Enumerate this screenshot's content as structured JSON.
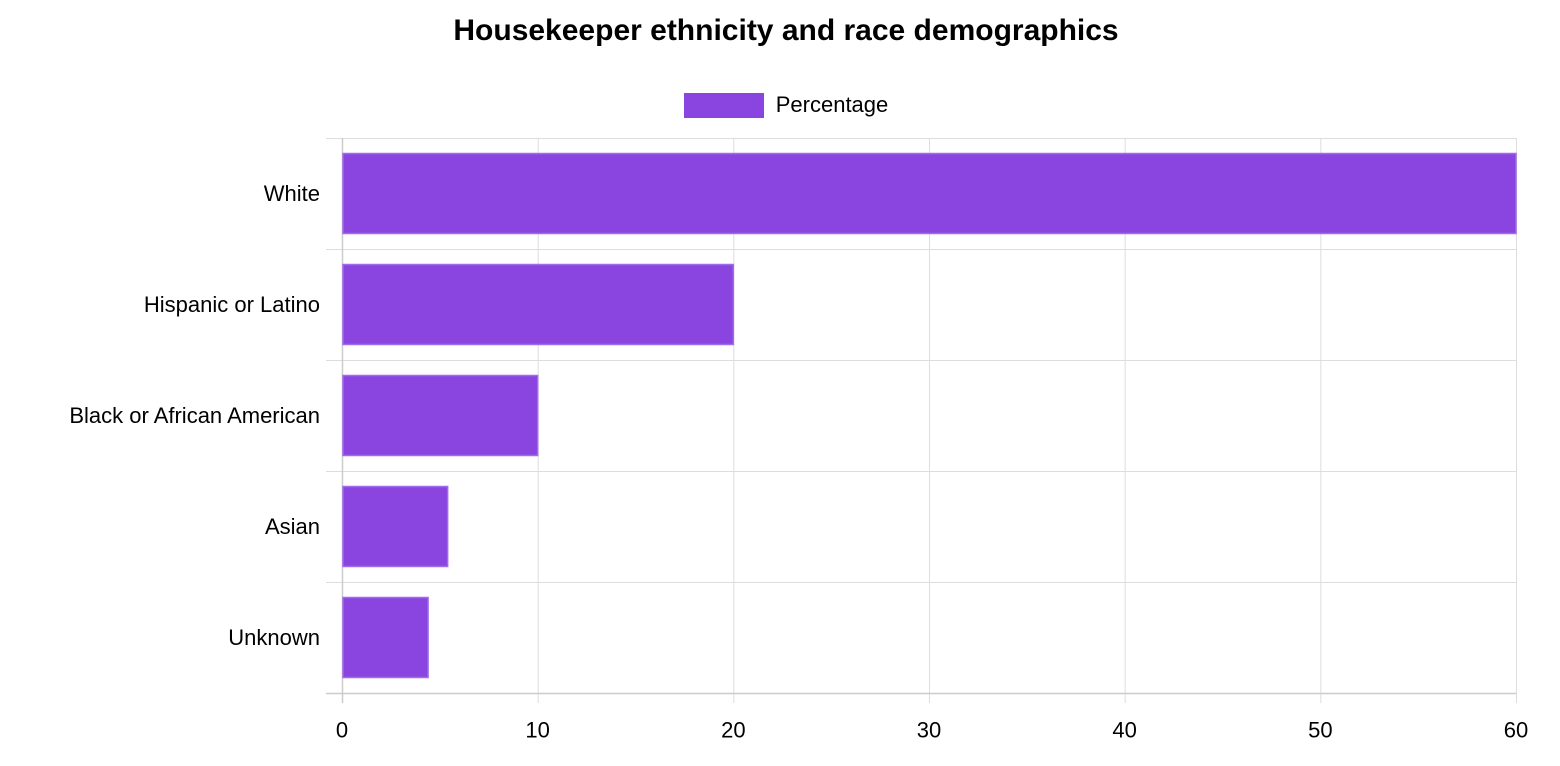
{
  "chart_data": {
    "type": "bar",
    "orientation": "horizontal",
    "title": "Housekeeper ethnicity and race demographics",
    "legend_position": "top-center",
    "grid": true,
    "categories": [
      "White",
      "Hispanic or Latino",
      "Black or African American",
      "Asian",
      "Unknown"
    ],
    "series": [
      {
        "name": "Percentage",
        "values": [
          60,
          20,
          10,
          5.4,
          4.4
        ],
        "color": "#8a44df"
      }
    ],
    "xlim": [
      0,
      60
    ],
    "x_ticks": [
      0,
      10,
      20,
      30,
      40,
      50,
      60
    ],
    "xlabel": "",
    "ylabel": ""
  }
}
